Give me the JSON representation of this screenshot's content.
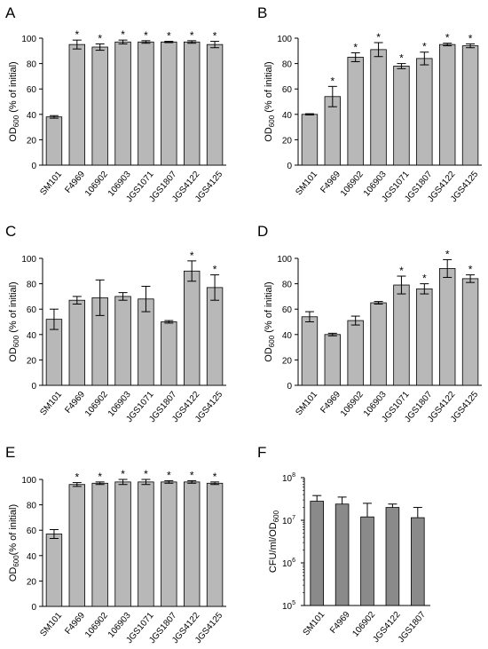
{
  "chart_data": [
    {
      "panel": "A",
      "type": "bar",
      "ylabel_main": "OD",
      "ylabel_sub": "600",
      "ylabel_rest": " (% of initial)",
      "ylim": [
        0,
        100
      ],
      "yticks": [
        "0",
        "20",
        "40",
        "60",
        "80",
        "100"
      ],
      "log": false,
      "categories": [
        "SM101",
        "F4969",
        "106902",
        "106903",
        "JGS1071",
        "JGS1807",
        "JGS4122",
        "JGS4125"
      ],
      "values": [
        38,
        95,
        93,
        97,
        97,
        97,
        97,
        95
      ],
      "errors": [
        1,
        3.5,
        2.5,
        1.5,
        1,
        0.5,
        1,
        2.5
      ],
      "significant": [
        "",
        "*",
        "*",
        "*",
        "*",
        "*",
        "*",
        "*"
      ],
      "bar_color": "#b8b8b8"
    },
    {
      "panel": "B",
      "type": "bar",
      "ylabel_main": "OD",
      "ylabel_sub": "600",
      "ylabel_rest": " (% of initial)",
      "ylim": [
        0,
        100
      ],
      "yticks": [
        "0",
        "20",
        "40",
        "60",
        "80",
        "100"
      ],
      "log": false,
      "categories": [
        "SM101",
        "F4969",
        "106902",
        "106903",
        "JGS1071",
        "JGS1807",
        "JGS4122",
        "JGS4125"
      ],
      "values": [
        40,
        54,
        85,
        91,
        78,
        84,
        95,
        94
      ],
      "errors": [
        0.5,
        8,
        3.5,
        5.5,
        2,
        5,
        1,
        1.5
      ],
      "significant": [
        "",
        "*",
        "*",
        "*",
        "*",
        "*",
        "*",
        "*"
      ],
      "bar_color": "#b8b8b8"
    },
    {
      "panel": "C",
      "type": "bar",
      "ylabel_main": "OD",
      "ylabel_sub": "600",
      "ylabel_rest": " (% of initial)",
      "ylim": [
        0,
        100
      ],
      "yticks": [
        "0",
        "20",
        "40",
        "60",
        "80",
        "100"
      ],
      "log": false,
      "categories": [
        "SM101",
        "F4969",
        "106902",
        "106903",
        "JGS1071",
        "JGS1807",
        "JGS4122",
        "JGS4125"
      ],
      "values": [
        52,
        67,
        69,
        70,
        68,
        50,
        90,
        77
      ],
      "errors": [
        8,
        3,
        14,
        3,
        10,
        1,
        8,
        10
      ],
      "significant": [
        "",
        "",
        "",
        "",
        "",
        "",
        "*",
        "*"
      ],
      "bar_color": "#b8b8b8"
    },
    {
      "panel": "D",
      "type": "bar",
      "ylabel_main": "OD",
      "ylabel_sub": "600",
      "ylabel_rest": " (% of initial)",
      "ylim": [
        0,
        100
      ],
      "yticks": [
        "0",
        "20",
        "40",
        "60",
        "80",
        "100"
      ],
      "log": false,
      "categories": [
        "SM101",
        "F4969",
        "106902",
        "106903",
        "JGS1071",
        "JGS1807",
        "JGS4122",
        "JGS4125"
      ],
      "values": [
        54,
        40,
        51,
        65,
        79,
        76,
        92,
        84
      ],
      "errors": [
        4,
        1,
        3.5,
        1,
        7,
        4,
        7,
        3
      ],
      "significant": [
        "",
        "",
        "",
        "",
        "*",
        "*",
        "*",
        "*"
      ],
      "bar_color": "#b8b8b8"
    },
    {
      "panel": "E",
      "type": "bar",
      "ylabel_main": "OD",
      "ylabel_sub": "600",
      "ylabel_rest": "(% of initial)",
      "ylim": [
        0,
        100
      ],
      "yticks": [
        "0",
        "20",
        "40",
        "60",
        "80",
        "100"
      ],
      "log": false,
      "categories": [
        "SM101",
        "F4969",
        "106902",
        "106903",
        "JGS1071",
        "JGS1807",
        "JGS4122",
        "JGS4125"
      ],
      "values": [
        57,
        96,
        97,
        98,
        98,
        98,
        98,
        97
      ],
      "errors": [
        3.5,
        1.5,
        1,
        2,
        2,
        1,
        1,
        1
      ],
      "significant": [
        "",
        "*",
        "*",
        "*",
        "*",
        "*",
        "*",
        "*"
      ],
      "bar_color": "#b8b8b8"
    },
    {
      "panel": "F",
      "type": "bar",
      "ylabel_main": "CFU/ml/OD",
      "ylabel_sub": "600",
      "ylabel_rest": "",
      "log": true,
      "ylim": [
        100000,
        100000000
      ],
      "yticks_base": [
        "10",
        "10",
        "10",
        "10"
      ],
      "yticks_exp": [
        "5",
        "6",
        "7",
        "8"
      ],
      "categories": [
        "SM101",
        "F4969",
        "106902",
        "JGS4122",
        "JGS1807"
      ],
      "values": [
        28000000,
        24000000,
        12000000,
        20000000,
        11500000
      ],
      "errors_upper": [
        38000000,
        35000000,
        25000000,
        24000000,
        20000000
      ],
      "significant": [
        "",
        "",
        "",
        "",
        ""
      ],
      "bar_color": "#8a8a8a"
    }
  ]
}
